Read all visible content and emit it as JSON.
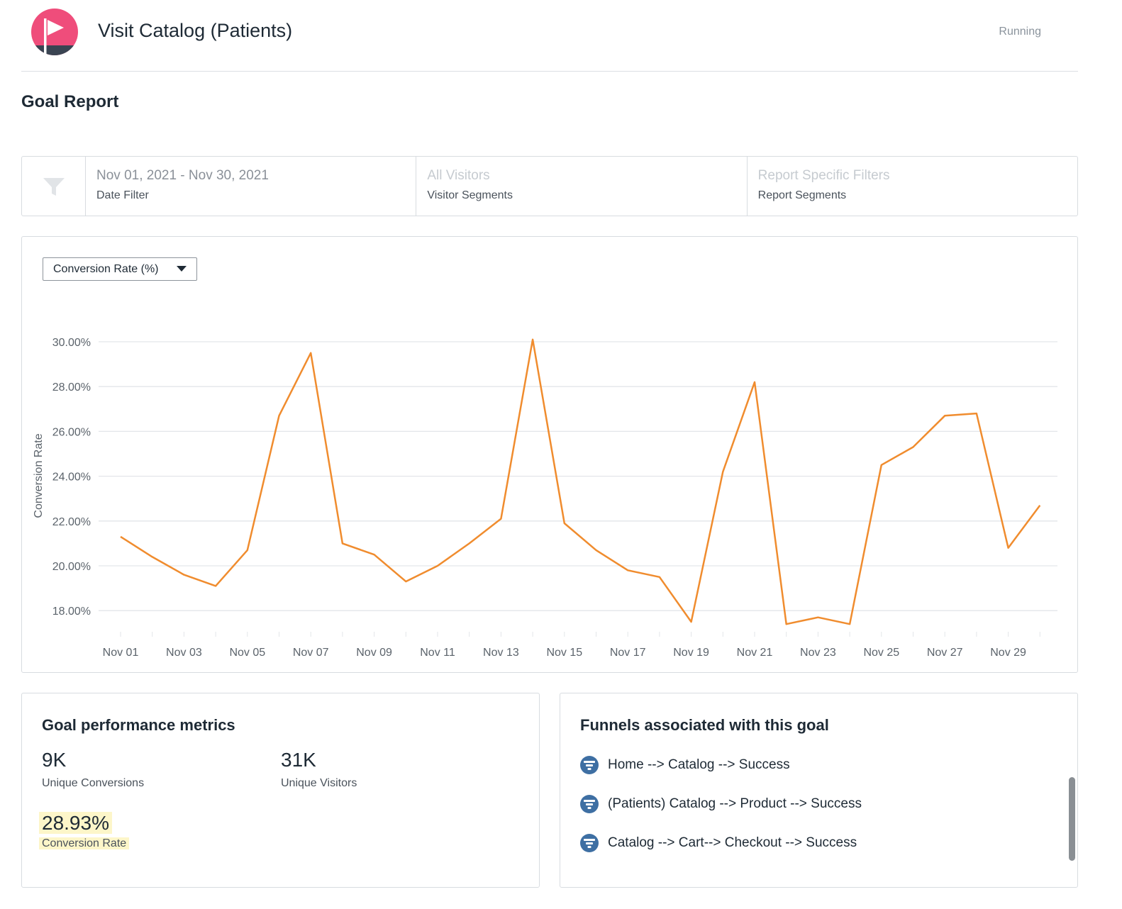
{
  "header": {
    "title": "Visit Catalog (Patients)",
    "status": "Running",
    "logo_icon": "flag-logo-icon",
    "colors": {
      "logo_primary": "#ef4d7b",
      "logo_secondary": "#3a4452"
    }
  },
  "section": {
    "title": "Goal Report"
  },
  "filters": {
    "icon": "filter-funnel-icon",
    "date": {
      "value": "Nov 01, 2021 - Nov 30, 2021",
      "label": "Date Filter"
    },
    "visitors": {
      "value": "All Visitors",
      "label": "Visitor Segments"
    },
    "report": {
      "value": "Report Specific Filters",
      "label": "Report Segments"
    }
  },
  "chart": {
    "selector_label": "Conversion Rate (%)"
  },
  "chart_data": {
    "type": "line",
    "ylabel": "Conversion Rate",
    "xlabel": "",
    "ylim": [
      17,
      31
    ],
    "yticks": [
      18,
      20,
      22,
      24,
      26,
      28,
      30
    ],
    "ytick_labels": [
      "18.00%",
      "20.00%",
      "22.00%",
      "24.00%",
      "26.00%",
      "28.00%",
      "30.00%"
    ],
    "grid": true,
    "color": "#f08c2e",
    "x": [
      "Nov 01",
      "Nov 02",
      "Nov 03",
      "Nov 04",
      "Nov 05",
      "Nov 06",
      "Nov 07",
      "Nov 08",
      "Nov 09",
      "Nov 10",
      "Nov 11",
      "Nov 12",
      "Nov 13",
      "Nov 14",
      "Nov 15",
      "Nov 16",
      "Nov 17",
      "Nov 18",
      "Nov 19",
      "Nov 20",
      "Nov 21",
      "Nov 22",
      "Nov 23",
      "Nov 24",
      "Nov 25",
      "Nov 26",
      "Nov 27",
      "Nov 28",
      "Nov 29",
      "Nov 30"
    ],
    "xtick_labels": [
      "Nov 01",
      "Nov 03",
      "Nov 05",
      "Nov 07",
      "Nov 09",
      "Nov 11",
      "Nov 13",
      "Nov 15",
      "Nov 17",
      "Nov 19",
      "Nov 21",
      "Nov 23",
      "Nov 25",
      "Nov 27",
      "Nov 29"
    ],
    "values": [
      21.3,
      20.4,
      19.6,
      19.1,
      20.7,
      26.7,
      29.5,
      21.0,
      20.5,
      19.3,
      20.0,
      21.0,
      22.1,
      30.1,
      21.9,
      20.7,
      19.8,
      19.5,
      17.5,
      24.2,
      28.2,
      17.4,
      17.7,
      17.4,
      24.5,
      25.3,
      26.7,
      26.8,
      20.8,
      22.7
    ]
  },
  "metrics": {
    "title": "Goal performance metrics",
    "unique_conversions": {
      "value": "9K",
      "label": "Unique Conversions"
    },
    "unique_visitors": {
      "value": "31K",
      "label": "Unique Visitors"
    },
    "conversion_rate": {
      "value": "28.93%",
      "label": "Conversion Rate"
    }
  },
  "funnels": {
    "title": "Funnels associated with this goal",
    "icon": "funnel-icon",
    "items": [
      {
        "label": "Home --> Catalog --> Success"
      },
      {
        "label": "(Patients) Catalog --> Product --> Success"
      },
      {
        "label": "Catalog --> Cart--> Checkout --> Success"
      }
    ]
  }
}
